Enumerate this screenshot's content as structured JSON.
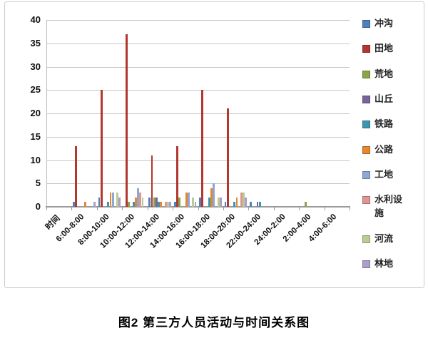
{
  "caption": "图2 第三方人员活动与时间关系图",
  "chart_data": {
    "type": "bar",
    "title": "图2 第三方人员活动与时间关系图",
    "xlabel": "",
    "ylabel": "",
    "ylim": [
      0,
      40
    ],
    "yticks": [
      0,
      5,
      10,
      15,
      20,
      25,
      30,
      35,
      40
    ],
    "grid": true,
    "legend_position": "right",
    "categories": [
      "时间",
      "6:00-8:00",
      "8:00-10:00",
      "10:00-12:00",
      "12:00-14:00",
      "14:00-16:00",
      "16:00-18:00",
      "18:00-20:00",
      "22:00-24:00",
      "24:00-2:00",
      "2:00-4:00",
      "4:00-6:00"
    ],
    "series": [
      {
        "name": "冲沟",
        "color": "#4F81BD",
        "values": [
          0,
          1,
          2,
          0,
          2,
          1,
          2,
          1,
          1,
          0,
          0,
          0
        ]
      },
      {
        "name": "田地",
        "color": "#B3362F",
        "values": [
          0,
          13,
          25,
          37,
          11,
          13,
          25,
          21,
          0,
          0,
          0,
          0
        ]
      },
      {
        "name": "荒地",
        "color": "#88A54A",
        "values": [
          0,
          0,
          0,
          1,
          2,
          2,
          0,
          0,
          0,
          0,
          1,
          0
        ]
      },
      {
        "name": "山丘",
        "color": "#7A629B",
        "values": [
          0,
          0,
          0,
          0,
          2,
          0,
          0,
          0,
          1,
          0,
          0,
          0
        ]
      },
      {
        "name": "铁路",
        "color": "#3C96AE",
        "values": [
          0,
          0,
          1,
          1,
          1,
          0,
          2,
          1,
          1,
          0,
          0,
          0
        ]
      },
      {
        "name": "公路",
        "color": "#E8862D",
        "values": [
          0,
          1,
          3,
          2,
          1,
          3,
          4,
          2,
          0,
          0,
          0,
          0
        ]
      },
      {
        "name": "工地",
        "color": "#8DA8D4",
        "values": [
          0,
          0,
          3,
          4,
          0,
          3,
          5,
          0,
          0,
          0,
          0,
          0
        ]
      },
      {
        "name": "水利设施",
        "color": "#DE9593",
        "values": [
          0,
          0,
          0,
          3,
          1,
          0,
          0,
          3,
          0,
          0,
          0,
          0
        ]
      },
      {
        "name": "河流",
        "color": "#BBCC92",
        "values": [
          0,
          0,
          3,
          2,
          1,
          2,
          2,
          3,
          0,
          0,
          0,
          0
        ]
      },
      {
        "name": "林地",
        "color": "#AC9ECA",
        "values": [
          0,
          1,
          2,
          0,
          1,
          1,
          2,
          2,
          0,
          0,
          0,
          0
        ]
      }
    ]
  }
}
